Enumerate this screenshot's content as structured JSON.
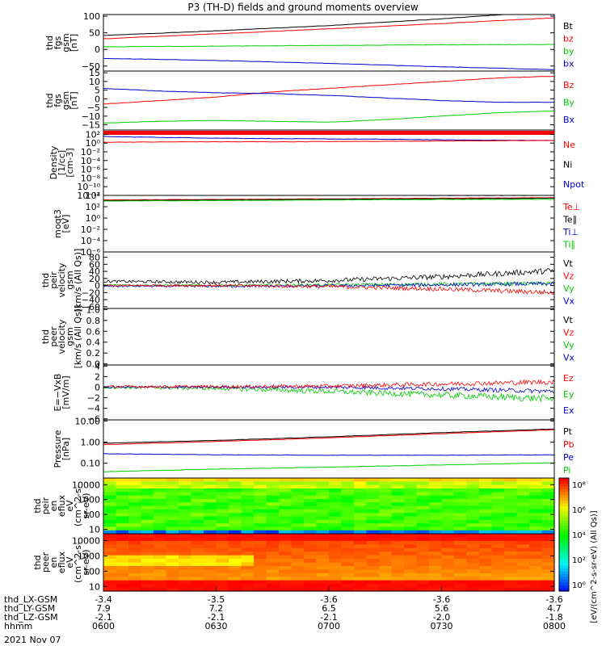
{
  "chart_data": {
    "type": "line",
    "title": "P3 (TH-D) fields and ground moments overview",
    "colors": {
      "black": "#000000",
      "red": "#ff0000",
      "green": "#00cc00",
      "blue": "#0000cc"
    },
    "x_ticks": [
      "0600",
      "0630",
      "0700",
      "0730",
      "0800"
    ],
    "ephemeris": [
      {
        "label": "thd_LX-GSM",
        "values": [
          "-3.4",
          "-3.5",
          "-3.6",
          "-3.6",
          "-3.6"
        ]
      },
      {
        "label": "thd_LY-GSM",
        "values": [
          "7.9",
          "7.2",
          "6.5",
          "5.6",
          "4.7"
        ]
      },
      {
        "label": "thd_LZ-GSM",
        "values": [
          "-2.1",
          "-2.1",
          "-2.1",
          "-2.0",
          "-1.8"
        ]
      },
      {
        "label": "hhmm",
        "values": [
          "0600",
          "0630",
          "0700",
          "0730",
          "0800"
        ]
      }
    ],
    "date_label": "2021 Nov 07",
    "panels": [
      {
        "ylabel": [
          "thd",
          "fgs",
          "gsm",
          "[nT]"
        ],
        "scale": "linear",
        "ylim": [
          -65,
          105
        ],
        "ticks": [
          {
            "v": 100,
            "t": "100"
          },
          {
            "v": 50,
            "t": "50"
          },
          {
            "v": 0,
            "t": "0"
          },
          {
            "v": -50,
            "t": "−50"
          }
        ],
        "legend": [
          {
            "t": "Bt",
            "c": "black"
          },
          {
            "t": "bz",
            "c": "red"
          },
          {
            "t": "by",
            "c": "green"
          },
          {
            "t": "bx",
            "c": "blue"
          }
        ],
        "series": [
          {
            "c": "black",
            "x": [
              0,
              0.5,
              1.0,
              1.5,
              1.75,
              2.0
            ],
            "y": [
              42,
              56,
              72,
              92,
              104,
              112
            ]
          },
          {
            "c": "red",
            "x": [
              0,
              0.5,
              1.0,
              1.5,
              2.0
            ],
            "y": [
              32,
              47,
              62,
              78,
              95
            ]
          },
          {
            "c": "green",
            "x": [
              0,
              0.5,
              1.0,
              1.5,
              2.0
            ],
            "y": [
              8,
              10,
              12,
              14,
              15
            ]
          },
          {
            "c": "blue",
            "x": [
              0,
              0.5,
              1.0,
              1.5,
              2.0
            ],
            "y": [
              -27,
              -33,
              -42,
              -52,
              -61
            ]
          }
        ]
      },
      {
        "ylabel": [
          "thd",
          "fgs",
          "gsm",
          "[nT]"
        ],
        "scale": "linear",
        "ylim": [
          -18,
          16
        ],
        "ticks": [
          {
            "v": 15,
            "t": "15"
          },
          {
            "v": 10,
            "t": "10"
          },
          {
            "v": 5,
            "t": "5"
          },
          {
            "v": 0,
            "t": "0"
          },
          {
            "v": -5,
            "t": "−5"
          },
          {
            "v": -10,
            "t": "−10"
          },
          {
            "v": -15,
            "t": "−15"
          }
        ],
        "legend": [
          {
            "t": "Bz",
            "c": "red"
          },
          {
            "t": "By",
            "c": "green"
          },
          {
            "t": "Bx",
            "c": "blue"
          }
        ],
        "series": [
          {
            "c": "red",
            "x": [
              0,
              0.25,
              0.5,
              0.75,
              1.0,
              1.25,
              1.5,
              1.75,
              2.0
            ],
            "y": [
              -3,
              -1,
              1,
              4,
              6,
              8,
              10,
              12,
              13
            ]
          },
          {
            "c": "green",
            "x": [
              0,
              0.25,
              0.5,
              0.75,
              1.0,
              1.25,
              1.5,
              1.75,
              2.0
            ],
            "y": [
              -14,
              -13,
              -12.5,
              -13,
              -13.5,
              -12,
              -10,
              -8,
              -7
            ]
          },
          {
            "c": "blue",
            "x": [
              0,
              0.25,
              0.5,
              0.75,
              1.0,
              1.25,
              1.5,
              1.75,
              2.0
            ],
            "y": [
              6,
              4.5,
              3.5,
              3,
              2,
              0.5,
              -1,
              -2,
              -2
            ]
          }
        ]
      },
      {
        "ylabel": [
          "Density",
          "[1/cc]",
          "[cm-3]"
        ],
        "scale": "log",
        "ylim": [
          -12,
          3
        ],
        "ticks": [
          {
            "v": 2,
            "t": "10²"
          },
          {
            "v": 0,
            "t": "10⁰"
          },
          {
            "v": -2,
            "t": "10⁻²"
          },
          {
            "v": -4,
            "t": "10⁻⁴"
          },
          {
            "v": -6,
            "t": "10⁻⁶"
          },
          {
            "v": -8,
            "t": "10⁻⁸"
          },
          {
            "v": -10,
            "t": "10⁻¹⁰"
          },
          {
            "v": -12,
            "t": "10⁻¹²"
          }
        ],
        "legend": [
          {
            "t": "Ne",
            "c": "red"
          },
          {
            "t": "Ni",
            "c": "black"
          },
          {
            "t": "Npot",
            "c": "blue"
          }
        ],
        "series": [
          {
            "c": "blue",
            "x": [
              0,
              0.4,
              0.8,
              1.2,
              1.6,
              2.0
            ],
            "y": [
              1.5,
              1.2,
              1.0,
              0.9,
              0.7,
              0.6
            ]
          },
          {
            "c": "red",
            "x": [
              0,
              0.4,
              0.8,
              1.2,
              1.6,
              2.0
            ],
            "y": [
              0.2,
              0.3,
              0.3,
              0.4,
              0.5,
              0.6
            ]
          }
        ]
      },
      {
        "ylabel": [
          "moqt3",
          "[eV]"
        ],
        "scale": "log",
        "ylim": [
          -6,
          4
        ],
        "ticks": [
          {
            "v": 4,
            "t": "10⁴"
          },
          {
            "v": 2,
            "t": "10²"
          },
          {
            "v": 0,
            "t": "10⁰"
          },
          {
            "v": -2,
            "t": "10⁻²"
          },
          {
            "v": -4,
            "t": "10⁻⁴"
          },
          {
            "v": -6,
            "t": "10⁻⁶"
          }
        ],
        "legend": [
          {
            "t": "Te⊥",
            "c": "red"
          },
          {
            "t": "Te∥",
            "c": "black"
          },
          {
            "t": "Ti⊥",
            "c": "blue"
          },
          {
            "t": "Ti∥",
            "c": "green"
          }
        ],
        "series": [
          {
            "c": "blue",
            "x": [
              0,
              0.5,
              1.0,
              1.5,
              2.0
            ],
            "y": [
              4.2,
              4.2,
              4.1,
              4.0,
              4.0
            ]
          },
          {
            "c": "red",
            "x": [
              0,
              0.5,
              1.0,
              1.5,
              2.0
            ],
            "y": [
              3.2,
              3.3,
              3.4,
              3.5,
              3.6
            ]
          },
          {
            "c": "black",
            "x": [
              0,
              0.5,
              1.0,
              1.5,
              2.0
            ],
            "y": [
              3.1,
              3.2,
              3.3,
              3.4,
              3.5
            ]
          },
          {
            "c": "green",
            "x": [
              0,
              0.5,
              1.0,
              1.5,
              2.0
            ],
            "y": [
              3.0,
              3.1,
              3.2,
              3.3,
              3.3
            ]
          }
        ]
      },
      {
        "ylabel": [
          "thd",
          "peir",
          "velocity",
          "gsm",
          "[km/s (All Qs)]"
        ],
        "scale": "linear",
        "ylim": [
          -65,
          95
        ],
        "ticks": [
          {
            "v": 80,
            "t": "80"
          },
          {
            "v": 60,
            "t": "60"
          },
          {
            "v": 40,
            "t": "40"
          },
          {
            "v": 20,
            "t": "20"
          },
          {
            "v": 0,
            "t": "0"
          },
          {
            "v": -20,
            "t": "−20"
          },
          {
            "v": -40,
            "t": "−40"
          },
          {
            "v": -60,
            "t": "−60"
          }
        ],
        "legend": [
          {
            "t": "Vt",
            "c": "black"
          },
          {
            "t": "Vz",
            "c": "red"
          },
          {
            "t": "Vy",
            "c": "green"
          },
          {
            "t": "Vx",
            "c": "blue"
          }
        ],
        "series": [
          {
            "c": "black",
            "x": [
              0,
              0.5,
              1.0,
              1.5,
              2.0
            ],
            "y": [
              12,
              9,
              14,
              25,
              42
            ],
            "noise": 6
          },
          {
            "c": "green",
            "x": [
              0,
              0.5,
              1.0,
              1.5,
              2.0
            ],
            "y": [
              2,
              0,
              2,
              4,
              6
            ],
            "noise": 4
          },
          {
            "c": "blue",
            "x": [
              0,
              0.5,
              1.0,
              1.5,
              2.0
            ],
            "y": [
              -2,
              -2,
              -1,
              2,
              5
            ],
            "noise": 4
          },
          {
            "c": "red",
            "x": [
              0,
              0.5,
              1.0,
              1.5,
              2.0
            ],
            "y": [
              0,
              0,
              -3,
              -10,
              -20
            ],
            "noise": 5
          }
        ]
      },
      {
        "ylabel": [
          "thd",
          "peer",
          "velocity",
          "gsm",
          "[km/s (All Qs)]"
        ],
        "scale": "linear",
        "ylim": [
          -0.02,
          1.02
        ],
        "ticks": [
          {
            "v": 1.0,
            "t": "1.0"
          },
          {
            "v": 0.8,
            "t": "0.8"
          },
          {
            "v": 0.6,
            "t": "0.6"
          },
          {
            "v": 0.4,
            "t": "0.4"
          },
          {
            "v": 0.2,
            "t": "0.2"
          },
          {
            "v": 0.0,
            "t": "0.0"
          }
        ],
        "legend": [
          {
            "t": "Vt",
            "c": "black"
          },
          {
            "t": "Vz",
            "c": "red"
          },
          {
            "t": "Vy",
            "c": "green"
          },
          {
            "t": "Vx",
            "c": "blue"
          }
        ],
        "series": []
      },
      {
        "ylabel": [
          "E=−VxB",
          "[mV/m]"
        ],
        "scale": "linear",
        "ylim": [
          -6.2,
          4.2
        ],
        "ticks": [
          {
            "v": 4,
            "t": "4"
          },
          {
            "v": 2,
            "t": "2"
          },
          {
            "v": 0,
            "t": "0"
          },
          {
            "v": -2,
            "t": "−2"
          },
          {
            "v": -4,
            "t": "−4"
          },
          {
            "v": -6,
            "t": "−6"
          }
        ],
        "legend": [
          {
            "t": "Ez",
            "c": "red"
          },
          {
            "t": "Ey",
            "c": "green"
          },
          {
            "t": "Ex",
            "c": "blue"
          }
        ],
        "series": [
          {
            "c": "green",
            "x": [
              0,
              0.5,
              1.0,
              1.5,
              2.0
            ],
            "y": [
              0,
              -0.2,
              -0.8,
              -1.5,
              -2.2
            ],
            "noise": 0.5
          },
          {
            "c": "blue",
            "x": [
              0,
              0.5,
              1.0,
              1.5,
              2.0
            ],
            "y": [
              0,
              0,
              0,
              -0.3,
              -0.8
            ],
            "noise": 0.3
          },
          {
            "c": "red",
            "x": [
              0,
              0.5,
              1.0,
              1.5,
              2.0
            ],
            "y": [
              0.1,
              0.1,
              0.2,
              0.6,
              1.0
            ],
            "noise": 0.35
          }
        ]
      },
      {
        "ylabel": [
          "Pressure",
          "[nPa]"
        ],
        "scale": "log",
        "ylim": [
          -1.7,
          1.05
        ],
        "ticks": [
          {
            "v": 1,
            "t": "10.00"
          },
          {
            "v": 0,
            "t": "1.00"
          },
          {
            "v": -1,
            "t": "0.10"
          }
        ],
        "legend": [
          {
            "t": "Pt",
            "c": "black"
          },
          {
            "t": "Pb",
            "c": "red"
          },
          {
            "t": "Pe",
            "c": "blue"
          },
          {
            "t": "Pi",
            "c": "green"
          }
        ],
        "series": [
          {
            "c": "black",
            "x": [
              0,
              0.5,
              1.0,
              1.5,
              2.0
            ],
            "y": [
              -0.05,
              0.08,
              0.25,
              0.45,
              0.62
            ]
          },
          {
            "c": "red",
            "x": [
              0,
              0.5,
              1.0,
              1.5,
              2.0
            ],
            "y": [
              -0.12,
              0.03,
              0.2,
              0.4,
              0.58
            ]
          },
          {
            "c": "blue",
            "x": [
              0,
              0.5,
              1.0,
              1.5,
              2.0
            ],
            "y": [
              -0.55,
              -0.6,
              -0.62,
              -0.62,
              -0.6
            ]
          },
          {
            "c": "green",
            "x": [
              0,
              0.5,
              1.0,
              1.5,
              2.0
            ],
            "y": [
              -1.4,
              -1.28,
              -1.18,
              -1.08,
              -0.98
            ]
          }
        ]
      },
      {
        "ylabel": [
          "thd",
          "peir",
          "en",
          "eflux",
          "eV",
          "(cm^2-s-",
          "sr-eV)"
        ],
        "scale": "spectrogram",
        "ylim": [
          0.7,
          4.45
        ],
        "ticks": [
          {
            "v": 4,
            "t": "10000"
          },
          {
            "v": 3,
            "t": "1000"
          },
          {
            "v": 2,
            "t": "100"
          },
          {
            "v": 1,
            "t": "10"
          }
        ],
        "legend": [],
        "kind": "ion",
        "series": []
      },
      {
        "ylabel": [
          "thd",
          "peer",
          "en",
          "eflux",
          "eV",
          "(cm^2-s-",
          "sr-eV)"
        ],
        "scale": "spectrogram",
        "ylim": [
          0.7,
          4.45
        ],
        "ticks": [
          {
            "v": 4,
            "t": "10000"
          },
          {
            "v": 3,
            "t": "1000"
          },
          {
            "v": 2,
            "t": "100"
          },
          {
            "v": 1,
            "t": "10"
          }
        ],
        "legend": [],
        "kind": "electron",
        "series": []
      }
    ],
    "colorbar": {
      "label": "[eV/(cm^2-s-sr-eV) (All Qs)]",
      "ticks": [
        "10⁸",
        "10⁶",
        "10⁴",
        "10²",
        "10⁰"
      ]
    }
  }
}
